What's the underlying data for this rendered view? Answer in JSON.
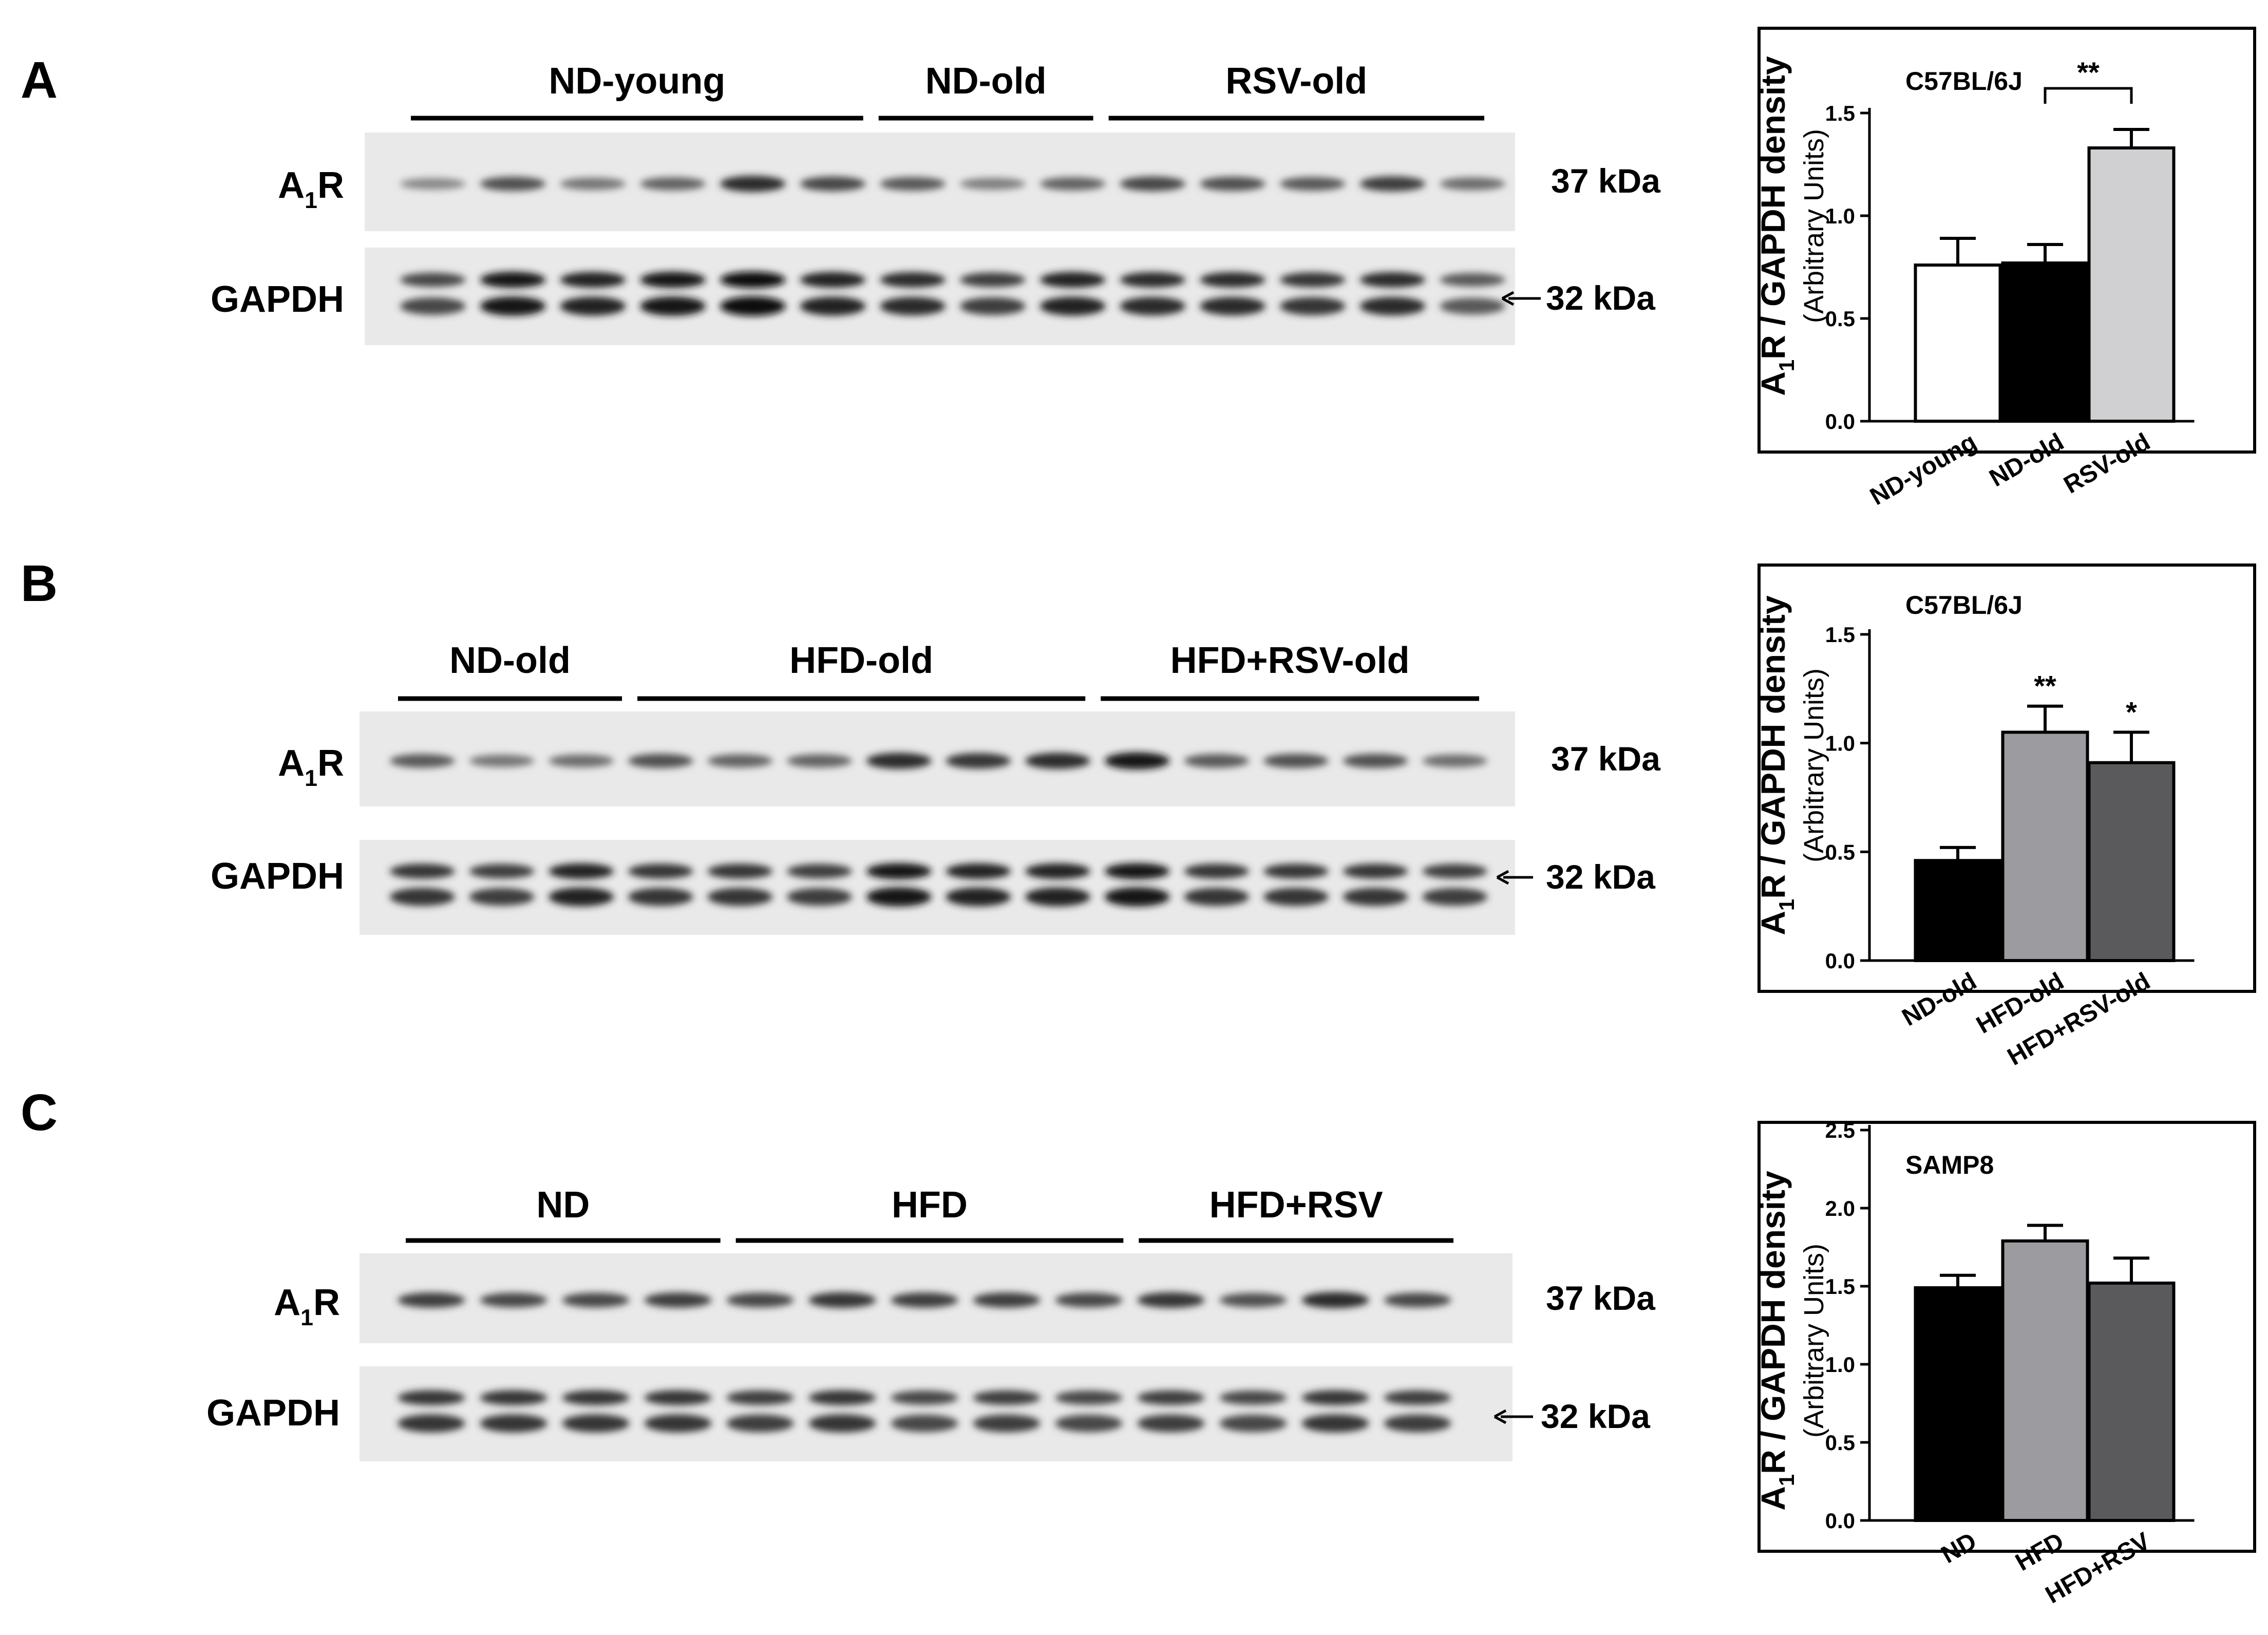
{
  "panels": [
    {
      "letter": "A",
      "groups": [
        {
          "label": "ND-young",
          "lanes": 6
        },
        {
          "label": "ND-old",
          "lanes": 3
        },
        {
          "label": "RSV-old",
          "lanes": 5
        }
      ],
      "blots": [
        {
          "label_main": "A",
          "label_sub": "1",
          "label_tail": "R",
          "kda": "37 kDa",
          "arrow": false,
          "band_intensity": [
            0.35,
            0.65,
            0.45,
            0.55,
            0.85,
            0.7,
            0.6,
            0.4,
            0.55,
            0.7,
            0.65,
            0.6,
            0.75,
            0.5
          ]
        },
        {
          "label_main": "GAPDH",
          "kda": "32 kDa",
          "arrow": true,
          "band_intensity": [
            0.7,
            0.95,
            0.9,
            0.95,
            1.0,
            0.9,
            0.85,
            0.75,
            0.9,
            0.85,
            0.85,
            0.8,
            0.85,
            0.6
          ]
        }
      ]
    },
    {
      "letter": "B",
      "groups": [
        {
          "label": "ND-old",
          "lanes": 3
        },
        {
          "label": "HFD-old",
          "lanes": 6
        },
        {
          "label": "HFD+RSV-old",
          "lanes": 5
        }
      ],
      "blots": [
        {
          "label_main": "A",
          "label_sub": "1",
          "label_tail": "R",
          "kda": "37 kDa",
          "arrow": false,
          "band_intensity": [
            0.6,
            0.45,
            0.5,
            0.65,
            0.55,
            0.55,
            0.85,
            0.8,
            0.85,
            0.95,
            0.6,
            0.65,
            0.65,
            0.5
          ]
        },
        {
          "label_main": "GAPDH",
          "kda": "32 kDa",
          "arrow": true,
          "band_intensity": [
            0.8,
            0.75,
            0.9,
            0.8,
            0.8,
            0.75,
            0.95,
            0.9,
            0.9,
            0.95,
            0.8,
            0.8,
            0.8,
            0.75
          ]
        }
      ]
    },
    {
      "letter": "C",
      "groups": [
        {
          "label": "ND",
          "lanes": 4
        },
        {
          "label": "HFD",
          "lanes": 5
        },
        {
          "label": "HFD+RSV",
          "lanes": 4
        }
      ],
      "blots": [
        {
          "label_main": "A",
          "label_sub": "1",
          "label_tail": "R",
          "kda": "37 kDa",
          "arrow": false,
          "band_intensity": [
            0.75,
            0.7,
            0.7,
            0.75,
            0.7,
            0.8,
            0.75,
            0.75,
            0.7,
            0.8,
            0.65,
            0.85,
            0.7
          ]
        },
        {
          "label_main": "GAPDH",
          "kda": "32 kDa",
          "arrow": true,
          "band_intensity": [
            0.8,
            0.8,
            0.8,
            0.8,
            0.75,
            0.8,
            0.7,
            0.75,
            0.7,
            0.75,
            0.7,
            0.8,
            0.75
          ]
        }
      ]
    }
  ],
  "chart_data": [
    {
      "type": "bar",
      "title": "C57BL/6J",
      "ylabel_main": "A",
      "ylabel_sub": "1",
      "ylabel_tail": "R / GAPDH density",
      "ylabel_2": "(Arbitrary Units)",
      "categories": [
        "ND-young",
        "ND-old",
        "RSV-old"
      ],
      "values": [
        0.76,
        0.77,
        1.33
      ],
      "errors": [
        0.13,
        0.09,
        0.09
      ],
      "bar_colors": [
        "#ffffff",
        "#000000",
        "#d0d0d2"
      ],
      "ylim": [
        0,
        1.5
      ],
      "yticks": [
        "0.0",
        "0.5",
        "1.0",
        "1.5"
      ],
      "significance": [
        {
          "label": "**",
          "bracket": [
            1,
            2
          ]
        }
      ]
    },
    {
      "type": "bar",
      "title": "C57BL/6J",
      "ylabel_main": "A",
      "ylabel_sub": "1",
      "ylabel_tail": "R / GAPDH density",
      "ylabel_2": "(Arbitrary Units)",
      "categories": [
        "ND-old",
        "HFD-old",
        "HFD+RSV-old"
      ],
      "values": [
        0.46,
        1.05,
        0.91
      ],
      "errors": [
        0.06,
        0.12,
        0.14
      ],
      "bar_colors": [
        "#000000",
        "#9c9ca0",
        "#5a5a5c"
      ],
      "ylim": [
        0,
        1.5
      ],
      "yticks": [
        "0.0",
        "0.5",
        "1.0",
        "1.5"
      ],
      "significance": [
        {
          "label": "**",
          "bar": 1
        },
        {
          "label": "*",
          "bar": 2
        }
      ]
    },
    {
      "type": "bar",
      "title": "SAMP8",
      "ylabel_main": "A",
      "ylabel_sub": "1",
      "ylabel_tail": "R / GAPDH density",
      "ylabel_2": "(Arbitrary Units)",
      "categories": [
        "ND",
        "HFD",
        "HFD+RSV"
      ],
      "values": [
        1.49,
        1.79,
        1.52
      ],
      "errors": [
        0.08,
        0.1,
        0.16
      ],
      "bar_colors": [
        "#000000",
        "#9c9ca0",
        "#5a5a5c"
      ],
      "ylim": [
        0,
        2.5
      ],
      "yticks": [
        "0.0",
        "0.5",
        "1.0",
        "1.5",
        "2.0",
        "2.5"
      ],
      "significance": []
    }
  ]
}
